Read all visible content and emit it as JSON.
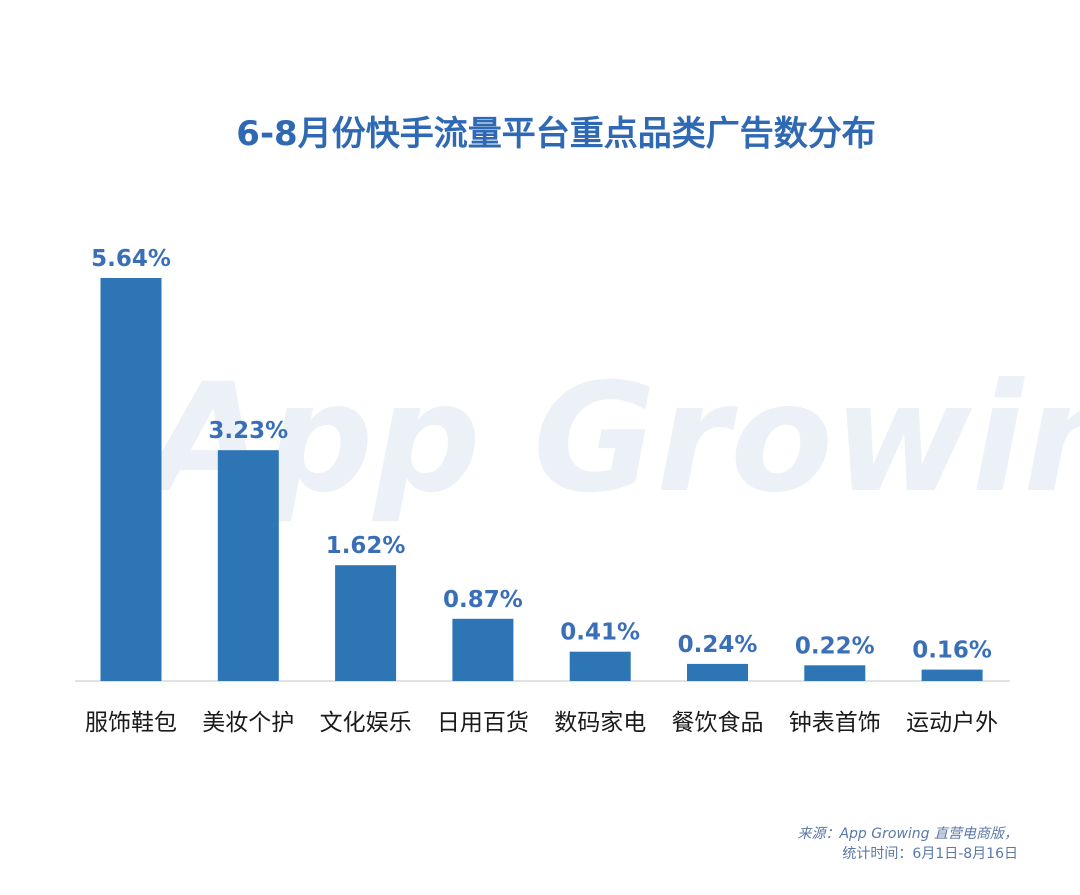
{
  "chart_data": {
    "type": "bar",
    "title": "6-8月份快手流量平台重点品类广告数分布",
    "categories": [
      "服饰鞋包",
      "美妆个护",
      "文化娱乐",
      "日用百货",
      "数码家电",
      "餐饮食品",
      "钟表首饰",
      "运动户外"
    ],
    "values": [
      5.64,
      3.23,
      1.62,
      0.87,
      0.41,
      0.24,
      0.22,
      0.16
    ],
    "value_labels": [
      "5.64%",
      "3.23%",
      "1.62%",
      "0.87%",
      "0.41%",
      "0.24%",
      "0.22%",
      "0.16%"
    ],
    "unit": "%",
    "ylim": [
      0,
      5.64
    ],
    "grid": false,
    "bar_color": "#2e75b6",
    "label_color": "#3a6fb8",
    "title_color": "#2f69b3"
  },
  "watermark": "App Growing",
  "source": {
    "line1": "来源：App Growing 直营电商版，",
    "line2": "统计时间：6月1日-8月16日"
  }
}
